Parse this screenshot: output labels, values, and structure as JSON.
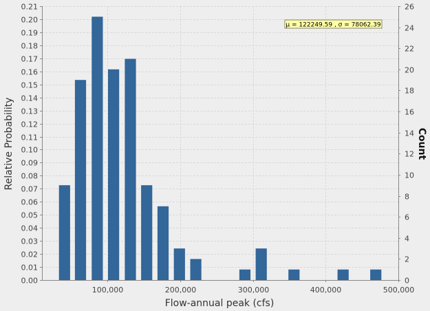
{
  "chart_data": {
    "type": "bar",
    "xlabel": "Flow-annual peak (cfs)",
    "ylabel": "Relative Probability",
    "y2label": "Count",
    "annotation": "μ = 122249.59 , σ = 78062.39",
    "xlim": [
      10000,
      500000
    ],
    "ylim": [
      0,
      0.21
    ],
    "y2lim": [
      0,
      26
    ],
    "bar_width": 15300,
    "x_ticks": [
      {
        "value": 100000,
        "label": "100,000"
      },
      {
        "value": 200000,
        "label": "200,000"
      },
      {
        "value": 300000,
        "label": "300,000"
      },
      {
        "value": 400000,
        "label": "400,000"
      },
      {
        "value": 500000,
        "label": "500,000"
      }
    ],
    "y_ticks": [
      {
        "value": 0.0,
        "label": "0.00"
      },
      {
        "value": 0.01,
        "label": "0.01"
      },
      {
        "value": 0.02,
        "label": "0.02"
      },
      {
        "value": 0.03,
        "label": "0.03"
      },
      {
        "value": 0.04,
        "label": "0.04"
      },
      {
        "value": 0.05,
        "label": "0.05"
      },
      {
        "value": 0.06,
        "label": "0.06"
      },
      {
        "value": 0.07,
        "label": "0.07"
      },
      {
        "value": 0.08,
        "label": "0.08"
      },
      {
        "value": 0.09,
        "label": "0.09"
      },
      {
        "value": 0.1,
        "label": "0.10"
      },
      {
        "value": 0.11,
        "label": "0.11"
      },
      {
        "value": 0.12,
        "label": "0.12"
      },
      {
        "value": 0.13,
        "label": "0.13"
      },
      {
        "value": 0.14,
        "label": "0.14"
      },
      {
        "value": 0.15,
        "label": "0.15"
      },
      {
        "value": 0.16,
        "label": "0.16"
      },
      {
        "value": 0.17,
        "label": "0.17"
      },
      {
        "value": 0.18,
        "label": "0.18"
      },
      {
        "value": 0.19,
        "label": "0.19"
      },
      {
        "value": 0.2,
        "label": "0.20"
      },
      {
        "value": 0.21,
        "label": "0.21"
      }
    ],
    "y2_ticks": [
      {
        "value": 0,
        "label": "0"
      },
      {
        "value": 2,
        "label": "2"
      },
      {
        "value": 4,
        "label": "4"
      },
      {
        "value": 6,
        "label": "6"
      },
      {
        "value": 8,
        "label": "8"
      },
      {
        "value": 10,
        "label": "10"
      },
      {
        "value": 12,
        "label": "12"
      },
      {
        "value": 14,
        "label": "14"
      },
      {
        "value": 16,
        "label": "16"
      },
      {
        "value": 18,
        "label": "18"
      },
      {
        "value": 20,
        "label": "20"
      },
      {
        "value": 22,
        "label": "22"
      },
      {
        "value": 24,
        "label": "24"
      },
      {
        "value": 26,
        "label": "26"
      }
    ],
    "bins": [
      {
        "x": 41000,
        "count": 9
      },
      {
        "x": 63000,
        "count": 19
      },
      {
        "x": 86000,
        "count": 25
      },
      {
        "x": 108500,
        "count": 20
      },
      {
        "x": 131500,
        "count": 21
      },
      {
        "x": 154000,
        "count": 9
      },
      {
        "x": 176500,
        "count": 7
      },
      {
        "x": 199000,
        "count": 3
      },
      {
        "x": 221500,
        "count": 2
      },
      {
        "x": 289000,
        "count": 1
      },
      {
        "x": 311500,
        "count": 3
      },
      {
        "x": 356500,
        "count": 1
      },
      {
        "x": 424000,
        "count": 1
      },
      {
        "x": 469000,
        "count": 1
      }
    ],
    "grid": true,
    "colors": {
      "bar": "#336699",
      "background": "#eeeeee",
      "plot_background": "#eeeeee",
      "grid": "#d8d8d8",
      "axis": "#888888",
      "annotation_fill": "#ffffa8",
      "annotation_border": "#888866"
    }
  }
}
